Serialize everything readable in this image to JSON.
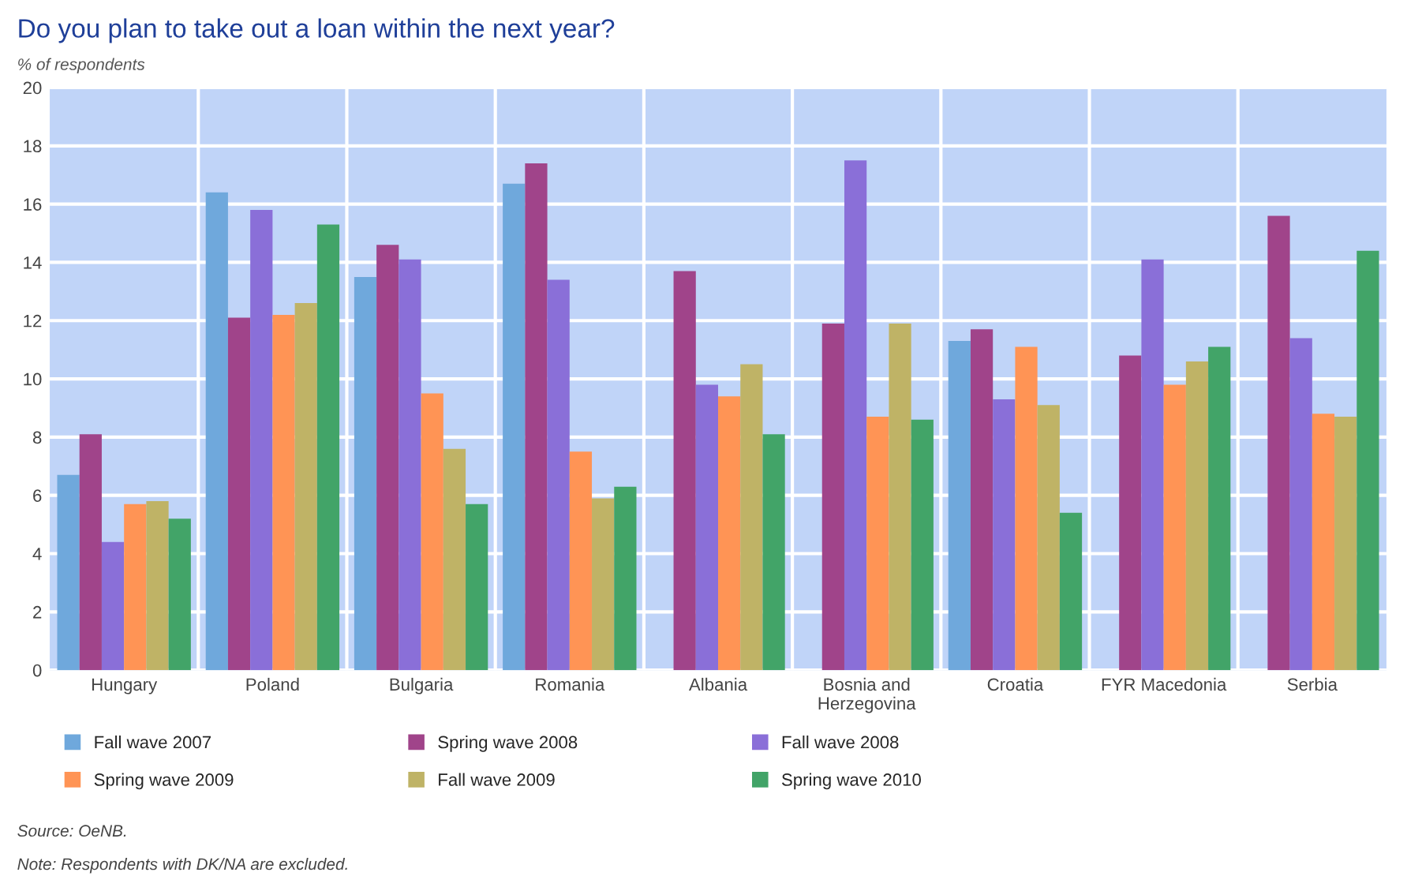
{
  "chart_data": {
    "type": "bar",
    "title": "Do you plan to take out a loan within the next year?",
    "ylabel": "% of respondents",
    "categories": [
      "Hungary",
      "Poland",
      "Bulgaria",
      "Romania",
      "Albania",
      "Bosnia and\nHerzegovina",
      "Croatia",
      "FYR Macedonia",
      "Serbia"
    ],
    "series": [
      {
        "name": "Fall wave 2007",
        "color": "#6fa8dc",
        "values": [
          6.7,
          16.4,
          13.5,
          16.7,
          null,
          null,
          11.3,
          null,
          null
        ]
      },
      {
        "name": "Spring wave 2008",
        "color": "#a0448a",
        "values": [
          8.1,
          12.1,
          14.6,
          17.4,
          13.7,
          11.9,
          11.7,
          10.8,
          15.6
        ]
      },
      {
        "name": "Fall wave 2008",
        "color": "#8a6fd8",
        "values": [
          4.4,
          15.8,
          14.1,
          13.4,
          9.8,
          17.5,
          9.3,
          14.1,
          11.4
        ]
      },
      {
        "name": "Spring wave 2009",
        "color": "#ff9455",
        "values": [
          5.7,
          12.2,
          9.5,
          7.5,
          9.4,
          8.7,
          11.1,
          9.8,
          8.8
        ]
      },
      {
        "name": "Fall wave 2009",
        "color": "#bfb366",
        "values": [
          5.8,
          12.6,
          7.6,
          5.9,
          10.5,
          11.9,
          9.1,
          10.6,
          8.7
        ]
      },
      {
        "name": "Spring wave 2010",
        "color": "#42a468",
        "values": [
          5.2,
          15.3,
          5.7,
          6.3,
          8.1,
          8.6,
          5.4,
          11.1,
          14.4
        ]
      }
    ],
    "ylim": [
      0,
      20
    ],
    "yticks": [
      0,
      2,
      4,
      6,
      8,
      10,
      12,
      14,
      16,
      18,
      20
    ],
    "grid": true,
    "legend": "bottom",
    "annotations": [
      "Source: OeNB.",
      "Note: Respondents with DK/NA are excluded."
    ]
  }
}
